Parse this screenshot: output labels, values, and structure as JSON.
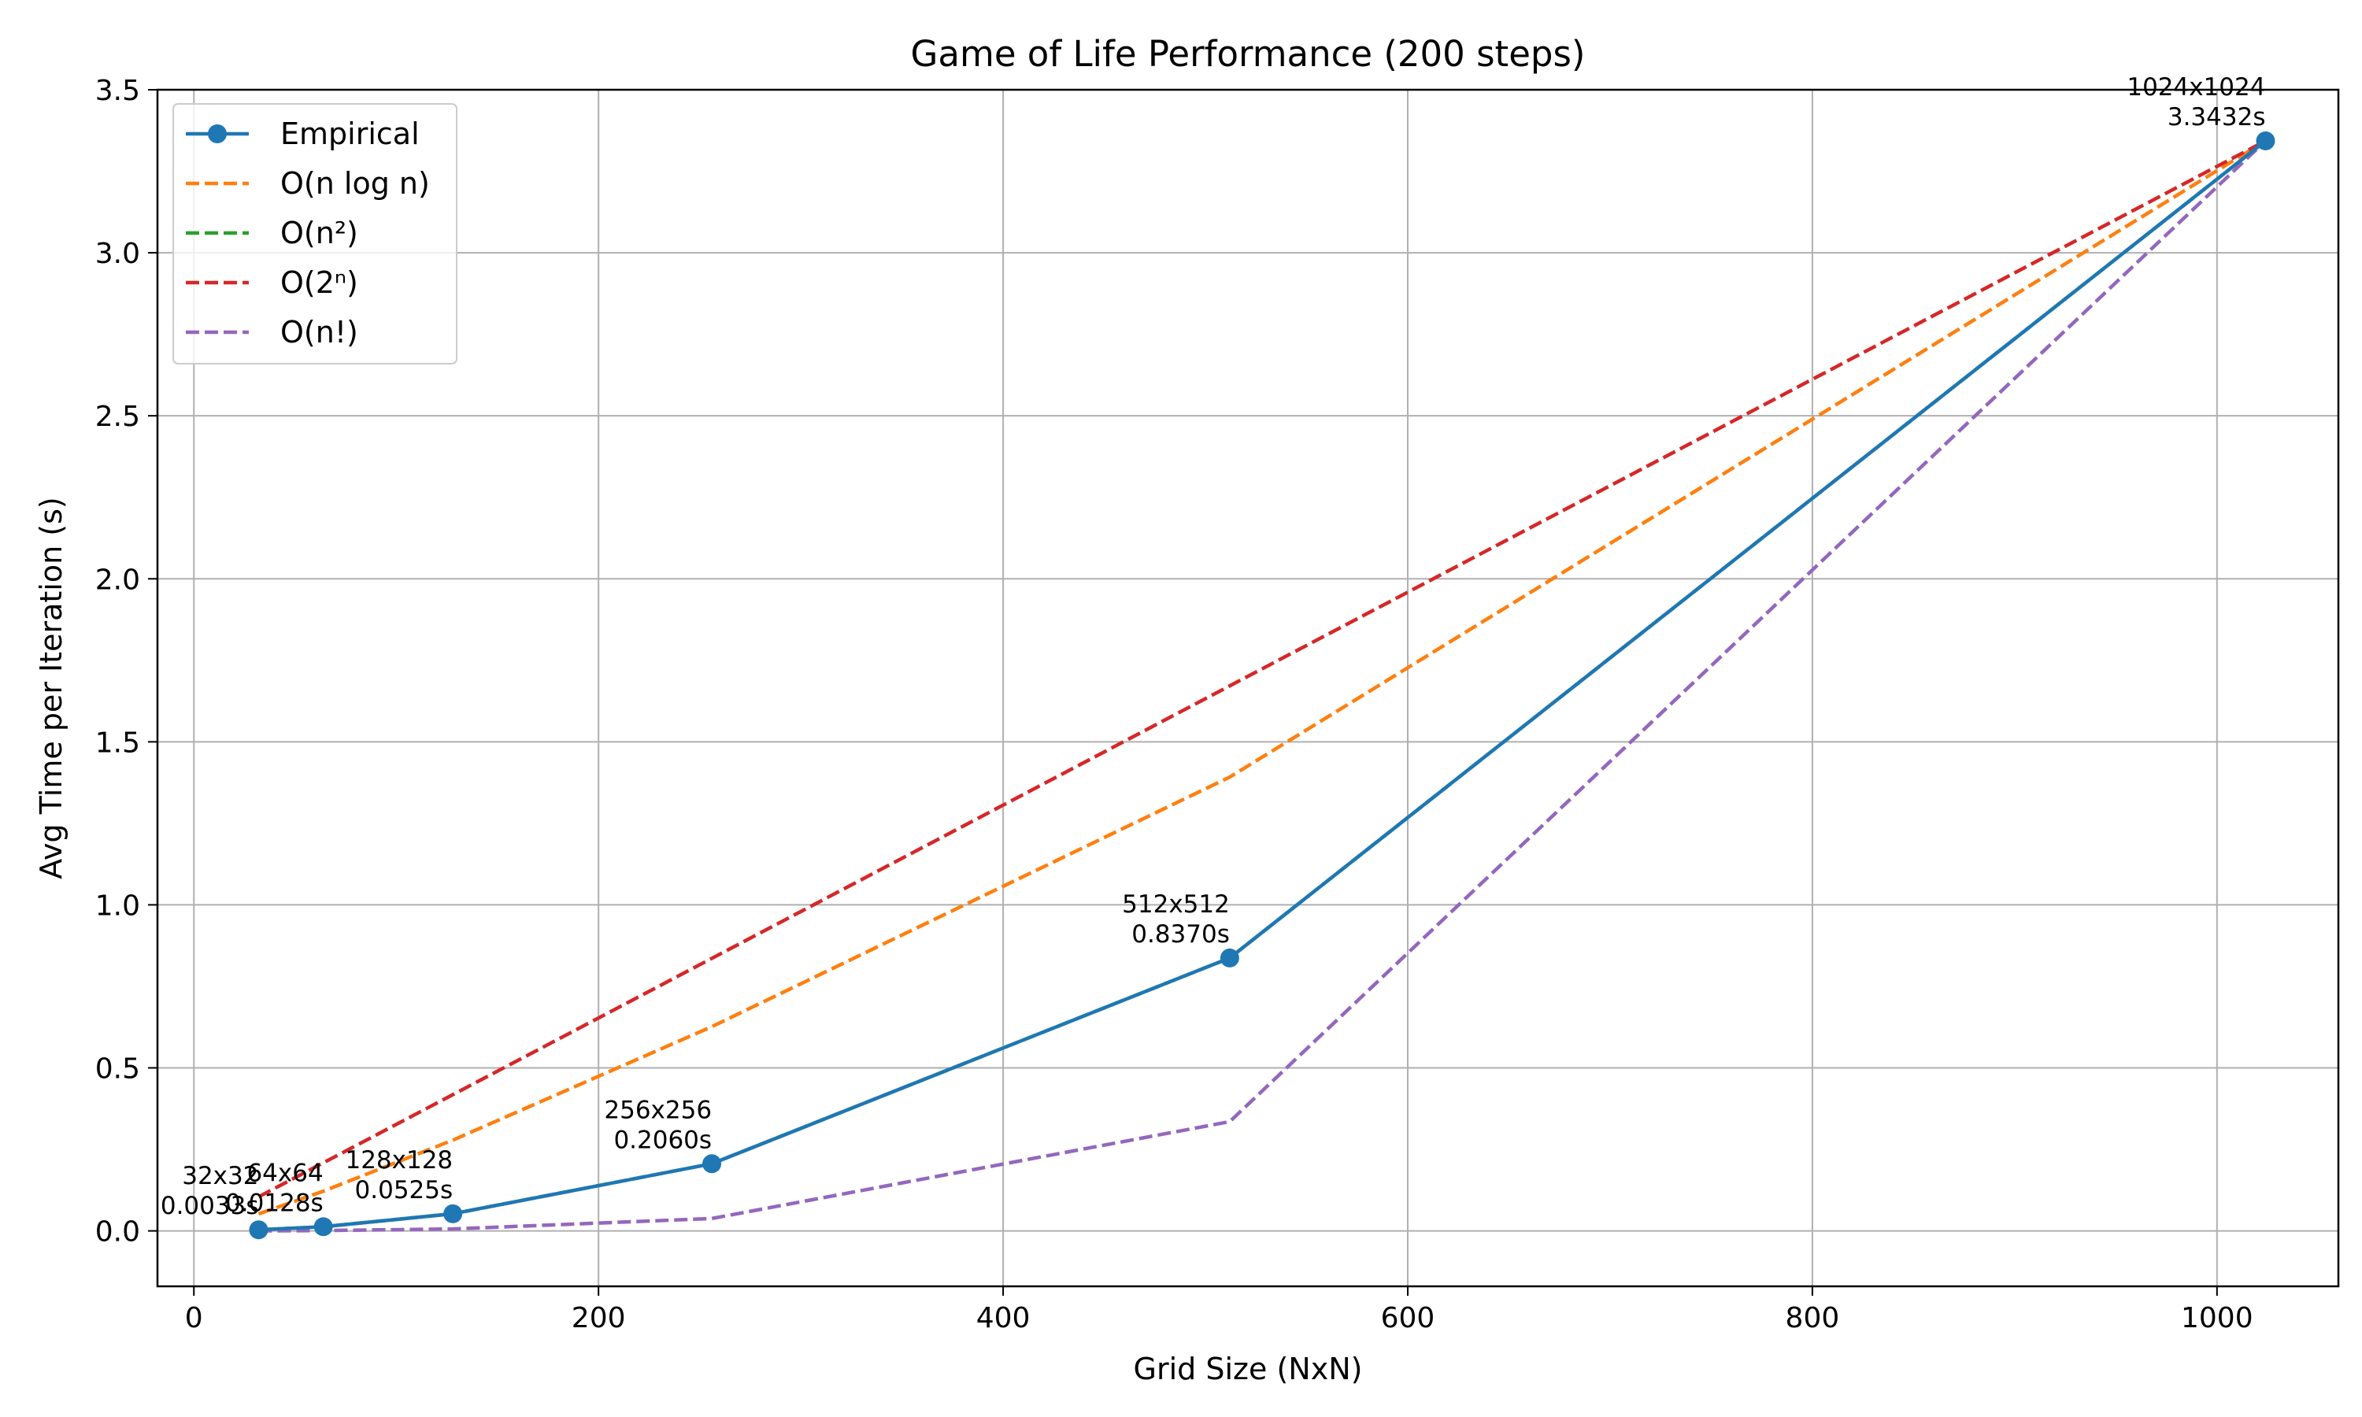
{
  "chart_data": {
    "type": "line",
    "title": "Game of Life Performance (200 steps)",
    "xlabel": "Grid Size (NxN)",
    "ylabel": "Avg Time per Iteration (s)",
    "xlim": [
      -18,
      1060
    ],
    "ylim": [
      -0.17,
      3.5
    ],
    "xticks": [
      0,
      200,
      400,
      600,
      800,
      1000
    ],
    "yticks": [
      0.0,
      0.5,
      1.0,
      1.5,
      2.0,
      2.5,
      3.0,
      3.5
    ],
    "xtick_labels": [
      "0",
      "200",
      "400",
      "600",
      "800",
      "1000"
    ],
    "ytick_labels": [
      "0.0",
      "0.5",
      "1.0",
      "1.5",
      "2.0",
      "2.5",
      "3.0",
      "3.5"
    ],
    "grid": true,
    "legend_position": "top-left",
    "x": [
      32,
      64,
      128,
      256,
      512,
      1024
    ],
    "series": [
      {
        "name": "O(n²)",
        "color": "#2ca02c",
        "style": "dashed",
        "values": [
          0.0033,
          0.0128,
          0.0525,
          0.206,
          0.837,
          3.3432
        ]
      },
      {
        "name": "O(n log n)",
        "color": "#ff7f0e",
        "style": "dashed",
        "values": [
          0.0522,
          0.1218,
          0.2784,
          0.6264,
          1.3919,
          3.3432
        ]
      },
      {
        "name": "O(2ⁿ)",
        "color": "#d62728",
        "style": "dashed",
        "values": [
          0.1045,
          0.2089,
          0.4179,
          0.8358,
          1.6716,
          3.3432
        ]
      },
      {
        "name": "O(n!)",
        "color": "#9467bd",
        "style": "dashed",
        "values": [
          0.0,
          0.001,
          0.006,
          0.038,
          0.335,
          3.3432
        ]
      },
      {
        "name": "Empirical",
        "color": "#1f77b4",
        "style": "solid-marker",
        "values": [
          0.0033,
          0.0128,
          0.0525,
          0.206,
          0.837,
          3.3432
        ]
      }
    ],
    "legend_order": [
      "Empirical",
      "O(n log n)",
      "O(n²)",
      "O(2ⁿ)",
      "O(n!)"
    ],
    "annotations": [
      {
        "x": 32,
        "y": 0.0033,
        "line1": "32x32",
        "line2": "0.0033s"
      },
      {
        "x": 64,
        "y": 0.0128,
        "line1": "64x64",
        "line2": "0.0128s"
      },
      {
        "x": 128,
        "y": 0.0525,
        "line1": "128x128",
        "line2": "0.0525s"
      },
      {
        "x": 256,
        "y": 0.206,
        "line1": "256x256",
        "line2": "0.2060s"
      },
      {
        "x": 512,
        "y": 0.837,
        "line1": "512x512",
        "line2": "0.8370s"
      },
      {
        "x": 1024,
        "y": 3.3432,
        "line1": "1024x1024",
        "line2": "3.3432s"
      }
    ]
  }
}
